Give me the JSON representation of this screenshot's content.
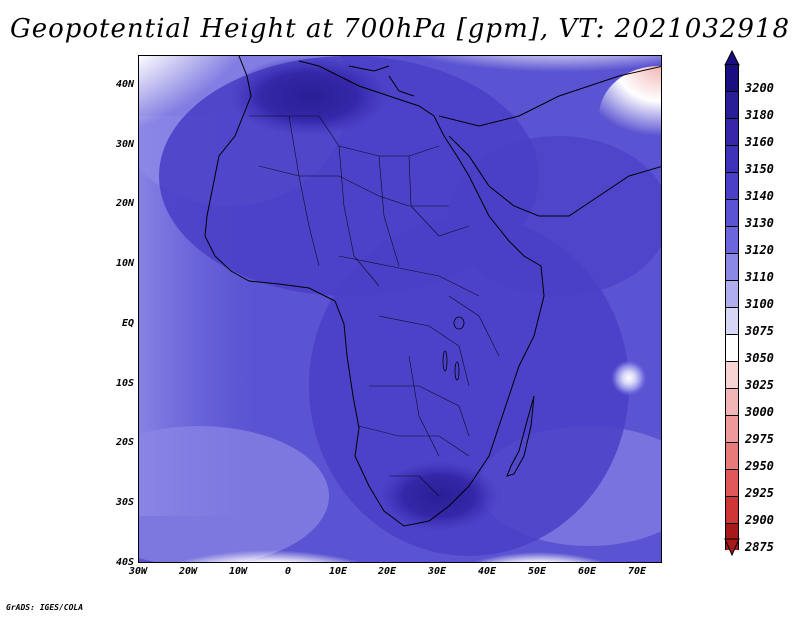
{
  "title": "Geopotential Height at 700hPa [gpm], VT: 2021032918",
  "credit": "GrADS: IGES/COLA",
  "map": {
    "lat_labels": [
      "40N",
      "30N",
      "20N",
      "10N",
      "EQ",
      "10S",
      "20S",
      "30S",
      "40S"
    ],
    "lon_labels": [
      "30W",
      "20W",
      "10W",
      "0",
      "10E",
      "20E",
      "30E",
      "40E",
      "50E",
      "60E",
      "70E"
    ],
    "lat_range": [
      -40,
      45
    ],
    "lon_range": [
      -30,
      75
    ]
  },
  "colorbar": {
    "levels": [
      "3200",
      "3180",
      "3160",
      "3150",
      "3140",
      "3130",
      "3120",
      "3110",
      "3100",
      "3075",
      "3050",
      "3025",
      "3000",
      "2975",
      "2950",
      "2925",
      "2900",
      "2875"
    ],
    "colors": [
      "#1a0f80",
      "#2a1e96",
      "#3527a8",
      "#3d33b8",
      "#4a40c8",
      "#5a53d2",
      "#6b66dc",
      "#8c88e6",
      "#b0aeef",
      "#d6d6f6",
      "#ffffff",
      "#f8d4d4",
      "#f3b6b6",
      "#ef9a9a",
      "#e87a7a",
      "#e05858",
      "#cf3636",
      "#a81a1a"
    ]
  }
}
